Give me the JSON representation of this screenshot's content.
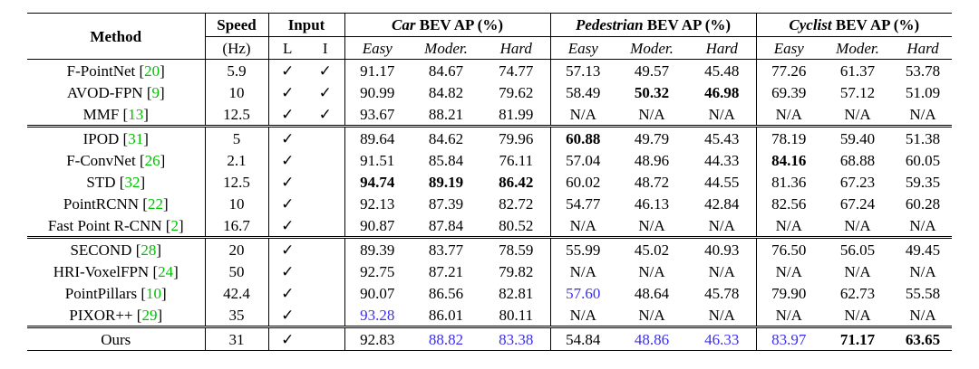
{
  "header": {
    "method": "Method",
    "speed": "Speed",
    "speed_unit": "(Hz)",
    "input": "Input",
    "input_l": "L",
    "input_i": "I",
    "car": "Car",
    "pedestrian": "Pedestrian",
    "cyclist": "Cyclist",
    "bev_suffix": " BEV AP (%)",
    "easy": "Easy",
    "moder": "Moder.",
    "hard": "Hard"
  },
  "groups": [
    [
      {
        "name": "F-PointNet",
        "cite": "20",
        "speed": "5.9",
        "L": "✓",
        "I": "✓",
        "vals": [
          "91.17",
          "84.67",
          "74.77",
          "57.13",
          "49.57",
          "45.48",
          "77.26",
          "61.37",
          "53.78"
        ],
        "style": [
          "",
          "",
          "",
          "",
          "",
          "",
          "",
          "",
          ""
        ]
      },
      {
        "name": "AVOD-FPN",
        "cite": "9",
        "speed": "10",
        "L": "✓",
        "I": "✓",
        "vals": [
          "90.99",
          "84.82",
          "79.62",
          "58.49",
          "50.32",
          "46.98",
          "69.39",
          "57.12",
          "51.09"
        ],
        "style": [
          "",
          "",
          "",
          "",
          "bold",
          "bold",
          "",
          "",
          ""
        ]
      },
      {
        "name": "MMF",
        "cite": "13",
        "speed": "12.5",
        "L": "✓",
        "I": "✓",
        "vals": [
          "93.67",
          "88.21",
          "81.99",
          "N/A",
          "N/A",
          "N/A",
          "N/A",
          "N/A",
          "N/A"
        ],
        "style": [
          "",
          "",
          "",
          "",
          "",
          "",
          "",
          "",
          ""
        ]
      }
    ],
    [
      {
        "name": "IPOD",
        "cite": "31",
        "speed": "5",
        "L": "✓",
        "I": "",
        "vals": [
          "89.64",
          "84.62",
          "79.96",
          "60.88",
          "49.79",
          "45.43",
          "78.19",
          "59.40",
          "51.38"
        ],
        "style": [
          "",
          "",
          "",
          "bold",
          "",
          "",
          "",
          "",
          ""
        ]
      },
      {
        "name": "F-ConvNet",
        "cite": "26",
        "speed": "2.1",
        "L": "✓",
        "I": "",
        "vals": [
          "91.51",
          "85.84",
          "76.11",
          "57.04",
          "48.96",
          "44.33",
          "84.16",
          "68.88",
          "60.05"
        ],
        "style": [
          "",
          "",
          "",
          "",
          "",
          "",
          "bold",
          "",
          ""
        ]
      },
      {
        "name": "STD",
        "cite": "32",
        "speed": "12.5",
        "L": "✓",
        "I": "",
        "vals": [
          "94.74",
          "89.19",
          "86.42",
          "60.02",
          "48.72",
          "44.55",
          "81.36",
          "67.23",
          "59.35"
        ],
        "style": [
          "bold",
          "bold",
          "bold",
          "",
          "",
          "",
          "",
          "",
          ""
        ]
      },
      {
        "name": "PointRCNN",
        "cite": "22",
        "speed": "10",
        "L": "✓",
        "I": "",
        "vals": [
          "92.13",
          "87.39",
          "82.72",
          "54.77",
          "46.13",
          "42.84",
          "82.56",
          "67.24",
          "60.28"
        ],
        "style": [
          "",
          "",
          "",
          "",
          "",
          "",
          "",
          "",
          ""
        ]
      },
      {
        "name": "Fast Point R-CNN",
        "cite": "2",
        "speed": "16.7",
        "L": "✓",
        "I": "",
        "vals": [
          "90.87",
          "87.84",
          "80.52",
          "N/A",
          "N/A",
          "N/A",
          "N/A",
          "N/A",
          "N/A"
        ],
        "style": [
          "",
          "",
          "",
          "",
          "",
          "",
          "",
          "",
          ""
        ]
      }
    ],
    [
      {
        "name": "SECOND",
        "cite": "28",
        "speed": "20",
        "L": "✓",
        "I": "",
        "vals": [
          "89.39",
          "83.77",
          "78.59",
          "55.99",
          "45.02",
          "40.93",
          "76.50",
          "56.05",
          "49.45"
        ],
        "style": [
          "",
          "",
          "",
          "",
          "",
          "",
          "",
          "",
          ""
        ]
      },
      {
        "name": "HRI-VoxelFPN",
        "cite": "24",
        "speed": "50",
        "L": "✓",
        "I": "",
        "vals": [
          "92.75",
          "87.21",
          "79.82",
          "N/A",
          "N/A",
          "N/A",
          "N/A",
          "N/A",
          "N/A"
        ],
        "style": [
          "",
          "",
          "",
          "",
          "",
          "",
          "",
          "",
          ""
        ]
      },
      {
        "name": "PointPillars",
        "cite": "10",
        "speed": "42.4",
        "L": "✓",
        "I": "",
        "vals": [
          "90.07",
          "86.56",
          "82.81",
          "57.60",
          "48.64",
          "45.78",
          "79.90",
          "62.73",
          "55.58"
        ],
        "style": [
          "",
          "",
          "",
          "blue",
          "",
          "",
          "",
          "",
          ""
        ]
      },
      {
        "name": "PIXOR++",
        "cite": "29",
        "speed": "35",
        "L": "✓",
        "I": "",
        "vals": [
          "93.28",
          "86.01",
          "80.11",
          "N/A",
          "N/A",
          "N/A",
          "N/A",
          "N/A",
          "N/A"
        ],
        "style": [
          "blue",
          "",
          "",
          "",
          "",
          "",
          "",
          "",
          ""
        ]
      }
    ],
    [
      {
        "name": "Ours",
        "cite": "",
        "speed": "31",
        "L": "✓",
        "I": "",
        "vals": [
          "92.83",
          "88.82",
          "83.38",
          "54.84",
          "48.86",
          "46.33",
          "83.97",
          "71.17",
          "63.65"
        ],
        "style": [
          "",
          "blue",
          "blue",
          "",
          "blue",
          "blue",
          "blue",
          "bold",
          "bold"
        ]
      }
    ]
  ]
}
